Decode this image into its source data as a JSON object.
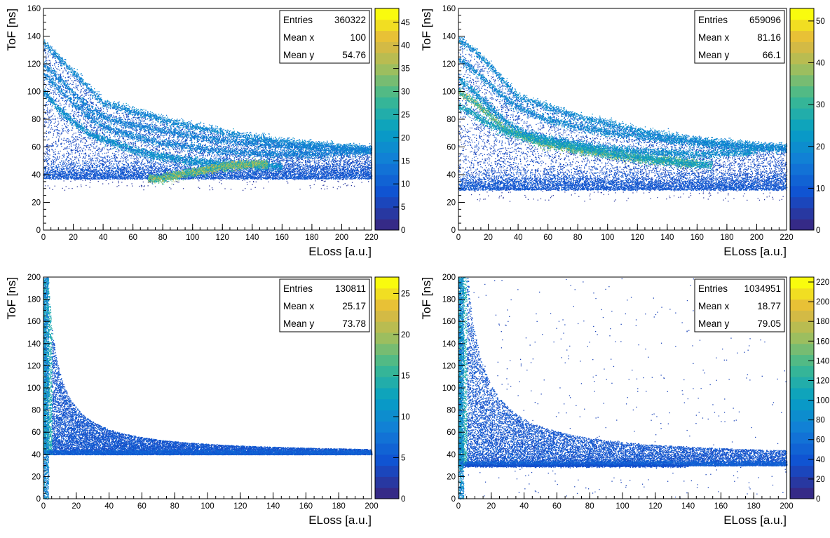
{
  "chart_data": [
    {
      "type": "heatmap",
      "xlabel": "ELoss [a.u.]",
      "ylabel": "ToF [ns]",
      "xlim": [
        0,
        220
      ],
      "ylim": [
        0,
        160
      ],
      "x_ticks": [
        0,
        20,
        40,
        60,
        80,
        100,
        120,
        140,
        160,
        180,
        200,
        220
      ],
      "y_ticks": [
        0,
        20,
        40,
        60,
        80,
        100,
        120,
        140,
        160
      ],
      "colorbar": {
        "min": 0,
        "max": 48,
        "ticks": [
          0,
          5,
          10,
          15,
          20,
          25,
          30,
          35,
          40,
          45
        ]
      },
      "stats": [
        {
          "label": "Entries",
          "value": "360322"
        },
        {
          "label": "Mean x",
          "value": "100"
        },
        {
          "label": "Mean y",
          "value": "54.76"
        }
      ],
      "y_cut": 37,
      "bands": [
        {
          "points": [
            [
              0,
              135
            ],
            [
              10,
              125
            ],
            [
              20,
              114
            ],
            [
              30,
              103
            ],
            [
              40,
              92
            ],
            [
              50,
              89
            ],
            [
              60,
              86
            ],
            [
              80,
              80
            ],
            [
              100,
              75
            ],
            [
              120,
              71
            ],
            [
              140,
              67
            ],
            [
              160,
              64
            ],
            [
              180,
              62
            ],
            [
              200,
              60
            ],
            [
              220,
              59
            ]
          ],
          "intensity": 0.35
        },
        {
          "points": [
            [
              0,
              120
            ],
            [
              10,
              110
            ],
            [
              20,
              99
            ],
            [
              30,
              88
            ],
            [
              45,
              80
            ],
            [
              60,
              76
            ],
            [
              80,
              72
            ],
            [
              100,
              68
            ],
            [
              120,
              65
            ],
            [
              140,
              63
            ],
            [
              160,
              61
            ],
            [
              180,
              60
            ],
            [
              200,
              59
            ],
            [
              220,
              58
            ]
          ],
          "intensity": 0.3
        },
        {
          "points": [
            [
              0,
              113
            ],
            [
              10,
              102
            ],
            [
              20,
              92
            ],
            [
              30,
              82
            ],
            [
              40,
              75
            ],
            [
              60,
              68
            ],
            [
              80,
              63
            ],
            [
              100,
              60
            ],
            [
              120,
              57
            ],
            [
              140,
              56
            ],
            [
              160,
              55
            ],
            [
              180,
              55
            ],
            [
              200,
              56
            ],
            [
              220,
              57
            ]
          ],
          "intensity": 0.3
        },
        {
          "points": [
            [
              0,
              100
            ],
            [
              10,
              88
            ],
            [
              20,
              78
            ],
            [
              30,
              70
            ],
            [
              40,
              66
            ],
            [
              50,
              62
            ],
            [
              60,
              58
            ],
            [
              70,
              55
            ],
            [
              80,
              53
            ],
            [
              100,
              50
            ],
            [
              120,
              48
            ],
            [
              140,
              47
            ],
            [
              160,
              46
            ]
          ],
          "intensity": 0.4
        },
        {
          "points": [
            [
              70,
              37
            ],
            [
              80,
              38
            ],
            [
              90,
              40
            ],
            [
              100,
              42
            ],
            [
              110,
              44
            ],
            [
              120,
              46
            ],
            [
              130,
              47
            ],
            [
              140,
              48
            ],
            [
              150,
              48
            ]
          ],
          "intensity": 0.9
        }
      ]
    },
    {
      "type": "heatmap",
      "xlabel": "ELoss [a.u.]",
      "ylabel": "ToF [ns]",
      "xlim": [
        0,
        220
      ],
      "ylim": [
        0,
        160
      ],
      "x_ticks": [
        0,
        20,
        40,
        60,
        80,
        100,
        120,
        140,
        160,
        180,
        200,
        220
      ],
      "y_ticks": [
        0,
        20,
        40,
        60,
        80,
        100,
        120,
        140,
        160
      ],
      "colorbar": {
        "min": 0,
        "max": 53,
        "ticks": [
          0,
          10,
          20,
          30,
          40,
          50
        ]
      },
      "stats": [
        {
          "label": "Entries",
          "value": "659096"
        },
        {
          "label": "Mean x",
          "value": "81.16"
        },
        {
          "label": "Mean y",
          "value": "66.1"
        }
      ],
      "y_cut": 29,
      "bands": [
        {
          "points": [
            [
              0,
              138
            ],
            [
              10,
              130
            ],
            [
              20,
              120
            ],
            [
              30,
              108
            ],
            [
              40,
              96
            ],
            [
              60,
              89
            ],
            [
              80,
              82
            ],
            [
              100,
              77
            ],
            [
              120,
              72
            ],
            [
              140,
              68
            ],
            [
              160,
              65
            ],
            [
              180,
              63
            ],
            [
              200,
              61
            ],
            [
              220,
              60
            ]
          ],
          "intensity": 0.35
        },
        {
          "points": [
            [
              0,
              124
            ],
            [
              10,
              116
            ],
            [
              20,
              106
            ],
            [
              30,
              96
            ],
            [
              45,
              86
            ],
            [
              60,
              80
            ],
            [
              80,
              75
            ],
            [
              100,
              71
            ],
            [
              120,
              68
            ],
            [
              140,
              65
            ],
            [
              160,
              63
            ],
            [
              180,
              61
            ],
            [
              200,
              60
            ],
            [
              220,
              59
            ]
          ],
          "intensity": 0.35
        },
        {
          "points": [
            [
              0,
              110
            ],
            [
              10,
              100
            ],
            [
              20,
              90
            ],
            [
              30,
              80
            ],
            [
              40,
              72
            ],
            [
              60,
              66
            ],
            [
              80,
              62
            ],
            [
              100,
              59
            ],
            [
              120,
              57
            ],
            [
              140,
              56
            ],
            [
              160,
              55
            ],
            [
              180,
              56
            ],
            [
              200,
              57
            ]
          ],
          "intensity": 0.4
        },
        {
          "points": [
            [
              0,
              100
            ],
            [
              10,
              93
            ],
            [
              20,
              84
            ],
            [
              30,
              74
            ],
            [
              35,
              71
            ],
            [
              45,
              67
            ],
            [
              55,
              63
            ],
            [
              65,
              61
            ],
            [
              80,
              58
            ],
            [
              100,
              55
            ],
            [
              120,
              52
            ],
            [
              140,
              50
            ],
            [
              160,
              48
            ]
          ],
          "intensity": 0.85
        },
        {
          "points": [
            [
              0,
              90
            ],
            [
              10,
              84
            ],
            [
              20,
              77
            ],
            [
              30,
              72
            ],
            [
              40,
              69
            ],
            [
              60,
              64
            ],
            [
              80,
              60
            ],
            [
              100,
              56
            ],
            [
              120,
              53
            ],
            [
              140,
              50
            ],
            [
              160,
              48
            ],
            [
              170,
              47
            ]
          ],
          "intensity": 0.55
        }
      ]
    },
    {
      "type": "heatmap",
      "xlabel": "ELoss [a.u.]",
      "ylabel": "ToF [ns]",
      "xlim": [
        0,
        200
      ],
      "ylim": [
        0,
        200
      ],
      "x_ticks": [
        0,
        20,
        40,
        60,
        80,
        100,
        120,
        140,
        160,
        180,
        200
      ],
      "y_ticks": [
        0,
        20,
        40,
        60,
        80,
        100,
        120,
        140,
        160,
        180,
        200
      ],
      "colorbar": {
        "min": 0,
        "max": 27,
        "ticks": [
          0,
          5,
          10,
          15,
          20,
          25
        ]
      },
      "stats": [
        {
          "label": "Entries",
          "value": "130811"
        },
        {
          "label": "Mean x",
          "value": "25.17"
        },
        {
          "label": "Mean y",
          "value": "73.78"
        }
      ],
      "y_cut": 40,
      "edge_curve": {
        "floor": 40,
        "k": 1000,
        "offset": 3.5
      },
      "x_end": 200
    },
    {
      "type": "heatmap",
      "xlabel": "ELoss [a.u.]",
      "ylabel": "ToF [ns]",
      "xlim": [
        0,
        200
      ],
      "ylim": [
        0,
        200
      ],
      "x_ticks": [
        0,
        20,
        40,
        60,
        80,
        100,
        120,
        140,
        160,
        180,
        200
      ],
      "y_ticks": [
        0,
        20,
        40,
        60,
        80,
        100,
        120,
        140,
        160,
        180,
        200
      ],
      "colorbar": {
        "min": 0,
        "max": 225,
        "ticks": [
          0,
          20,
          40,
          60,
          80,
          100,
          120,
          140,
          160,
          180,
          200,
          220
        ]
      },
      "stats": [
        {
          "label": "Entries",
          "value": "1034951"
        },
        {
          "label": "Mean x",
          "value": "18.77"
        },
        {
          "label": "Mean y",
          "value": "79.05"
        }
      ],
      "y_cut": 30,
      "edge_curve": {
        "floor": 36,
        "k": 1600,
        "offset": 4
      },
      "x_end": 200,
      "line_y": 30
    }
  ]
}
